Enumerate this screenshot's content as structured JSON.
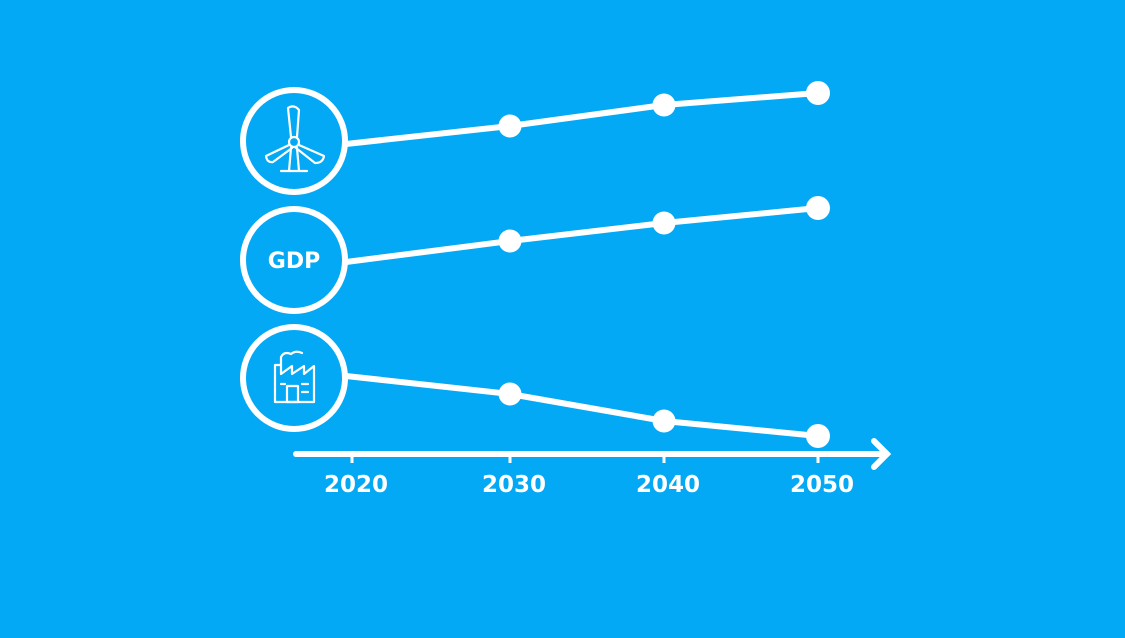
{
  "colors": {
    "background": "#03A9F4",
    "foreground": "#FFFFFF"
  },
  "chart_data": {
    "type": "line",
    "x": [
      2020,
      2030,
      2040,
      2050
    ],
    "x_tick_labels": [
      "2020",
      "2030",
      "2040",
      "2050"
    ],
    "y_range": [
      0,
      100
    ],
    "grid": false,
    "legend": "icons-left",
    "series": [
      {
        "icon": "wind-turbine-icon",
        "label": "",
        "values": [
          58,
          64,
          71,
          75
        ]
      },
      {
        "icon": "gdp-badge",
        "label": "GDP",
        "values": [
          10,
          17,
          23,
          28
        ]
      },
      {
        "icon": "factory-icon",
        "label": "",
        "values": [
          -42,
          -48,
          -57,
          -62
        ]
      }
    ]
  }
}
